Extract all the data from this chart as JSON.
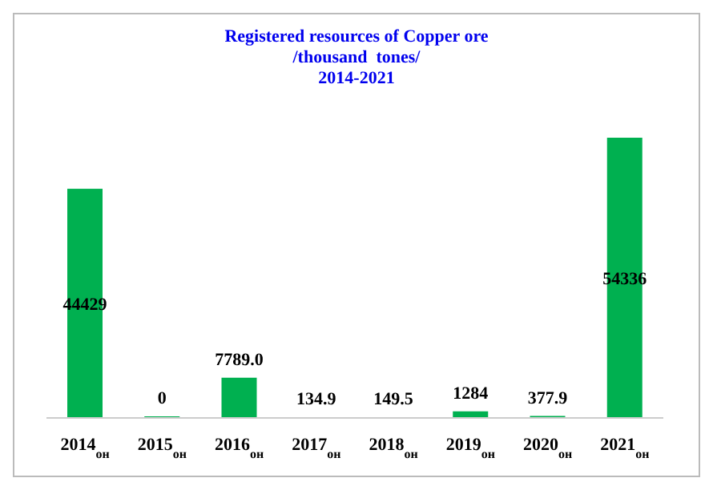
{
  "chart_data": {
    "type": "bar",
    "title": "Registered resources of Copper ore\n/thousand  tones/\n2014-2021",
    "categories": [
      "2014$_{он}$",
      "2015$_{он}$",
      "2016$_{он}$",
      "2017$_{он}$",
      "2018$_{он}$",
      "2019$_{он}$",
      "2020$_{он}$",
      "2021$_{он}$"
    ],
    "values": [
      44429,
      0,
      7789,
      134.9,
      149.5,
      1284,
      377.9,
      54336
    ],
    "value_labels": [
      "44429",
      "0",
      "7789.0",
      "134.9",
      "149.5",
      "1284",
      "377.9",
      "54336"
    ],
    "color": "#00b050"
  }
}
